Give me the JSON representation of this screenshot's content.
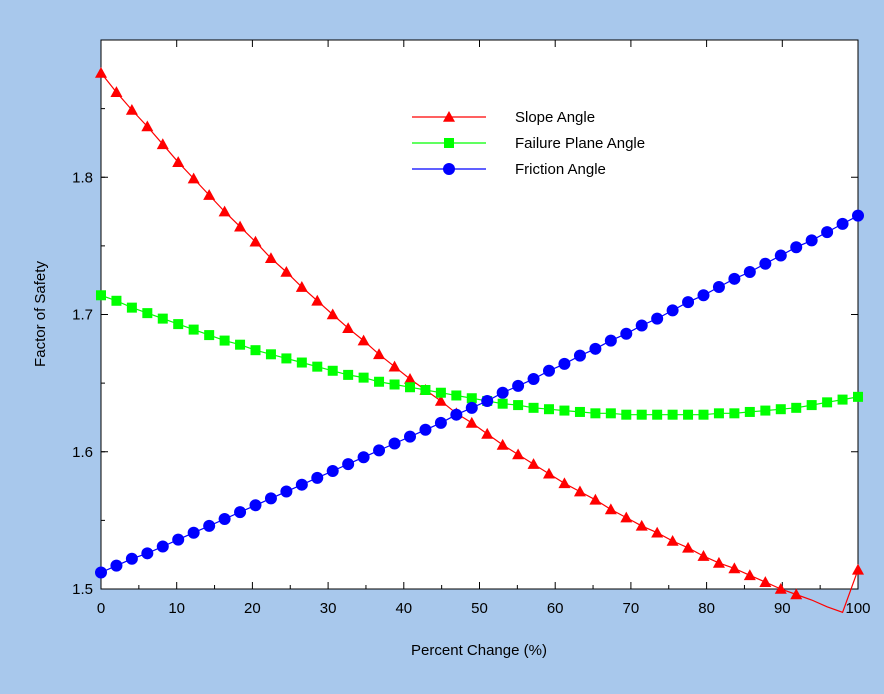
{
  "chart_data": {
    "type": "line",
    "title": "",
    "xlabel": "Percent Change (%)",
    "ylabel": "Factor of Safety",
    "xlim": [
      0,
      100
    ],
    "ylim": [
      1.5,
      1.9
    ],
    "x_ticks": [
      "0",
      "10",
      "20",
      "30",
      "40",
      "50",
      "60",
      "70",
      "80",
      "90",
      "100"
    ],
    "y_ticks": [
      "1.5",
      "1.6",
      "1.7",
      "1.8"
    ],
    "grid": false,
    "legend_position": "top-right",
    "background_color": "#a8c8ec",
    "series": [
      {
        "name": "Slope Angle",
        "color": "#ff0000",
        "marker": "triangle",
        "x": [
          0,
          2.04,
          4.08,
          6.12,
          8.16,
          10.2,
          12.24,
          14.29,
          16.33,
          18.37,
          20.41,
          22.45,
          24.49,
          26.53,
          28.57,
          30.61,
          32.65,
          34.69,
          36.73,
          38.78,
          40.82,
          42.86,
          44.9,
          46.94,
          48.98,
          51.02,
          53.06,
          55.1,
          57.14,
          59.18,
          61.22,
          63.27,
          65.31,
          67.35,
          69.39,
          71.43,
          73.47,
          75.51,
          77.55,
          79.59,
          81.63,
          83.67,
          85.71,
          87.76,
          89.8,
          91.84,
          93.88,
          95.92,
          97.96,
          100
        ],
        "y": [
          1.876,
          1.862,
          1.849,
          1.837,
          1.824,
          1.811,
          1.799,
          1.787,
          1.775,
          1.764,
          1.753,
          1.741,
          1.731,
          1.72,
          1.71,
          1.7,
          1.69,
          1.681,
          1.671,
          1.662,
          1.653,
          1.645,
          1.637,
          1.628,
          1.621,
          1.613,
          1.605,
          1.598,
          1.591,
          1.584,
          1.577,
          1.571,
          1.565,
          1.558,
          1.552,
          1.546,
          1.541,
          1.535,
          1.53,
          1.524,
          1.519,
          1.515,
          1.51,
          1.505,
          1.5,
          1.496,
          1.492,
          1.487,
          1.483,
          1.514
        ]
      },
      {
        "name": "Failure Plane Angle",
        "color": "#00ff00",
        "marker": "square",
        "x": [
          0,
          2.04,
          4.08,
          6.12,
          8.16,
          10.2,
          12.24,
          14.29,
          16.33,
          18.37,
          20.41,
          22.45,
          24.49,
          26.53,
          28.57,
          30.61,
          32.65,
          34.69,
          36.73,
          38.78,
          40.82,
          42.86,
          44.9,
          46.94,
          48.98,
          51.02,
          53.06,
          55.1,
          57.14,
          59.18,
          61.22,
          63.27,
          65.31,
          67.35,
          69.39,
          71.43,
          73.47,
          75.51,
          77.55,
          79.59,
          81.63,
          83.67,
          85.71,
          87.76,
          89.8,
          91.84,
          93.88,
          95.92,
          97.96,
          100
        ],
        "y": [
          1.714,
          1.71,
          1.705,
          1.701,
          1.697,
          1.693,
          1.689,
          1.685,
          1.681,
          1.678,
          1.674,
          1.671,
          1.668,
          1.665,
          1.662,
          1.659,
          1.656,
          1.654,
          1.651,
          1.649,
          1.647,
          1.645,
          1.643,
          1.641,
          1.639,
          1.637,
          1.635,
          1.634,
          1.632,
          1.631,
          1.63,
          1.629,
          1.628,
          1.628,
          1.627,
          1.627,
          1.627,
          1.627,
          1.627,
          1.627,
          1.628,
          1.628,
          1.629,
          1.63,
          1.631,
          1.632,
          1.634,
          1.636,
          1.638,
          1.64
        ]
      },
      {
        "name": "Friction Angle",
        "color": "#0000ff",
        "marker": "circle",
        "x": [
          0,
          2.04,
          4.08,
          6.12,
          8.16,
          10.2,
          12.24,
          14.29,
          16.33,
          18.37,
          20.41,
          22.45,
          24.49,
          26.53,
          28.57,
          30.61,
          32.65,
          34.69,
          36.73,
          38.78,
          40.82,
          42.86,
          44.9,
          46.94,
          48.98,
          51.02,
          53.06,
          55.1,
          57.14,
          59.18,
          61.22,
          63.27,
          65.31,
          67.35,
          69.39,
          71.43,
          73.47,
          75.51,
          77.55,
          79.59,
          81.63,
          83.67,
          85.71,
          87.76,
          89.8,
          91.84,
          93.88,
          95.92,
          97.96,
          100
        ],
        "y": [
          1.512,
          1.517,
          1.522,
          1.526,
          1.531,
          1.536,
          1.541,
          1.546,
          1.551,
          1.556,
          1.561,
          1.566,
          1.571,
          1.576,
          1.581,
          1.586,
          1.591,
          1.596,
          1.601,
          1.606,
          1.611,
          1.616,
          1.621,
          1.627,
          1.632,
          1.637,
          1.643,
          1.648,
          1.653,
          1.659,
          1.664,
          1.67,
          1.675,
          1.681,
          1.686,
          1.692,
          1.697,
          1.703,
          1.709,
          1.714,
          1.72,
          1.726,
          1.731,
          1.737,
          1.743,
          1.749,
          1.754,
          1.76,
          1.766,
          1.772
        ]
      }
    ]
  }
}
